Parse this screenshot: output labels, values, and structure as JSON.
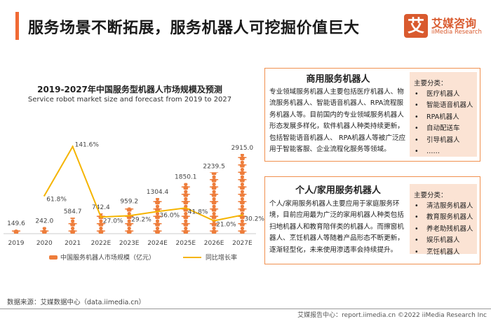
{
  "header": {
    "title": "服务场景不断拓展，服务机器人可挖掘价值巨大"
  },
  "logo": {
    "mark": "艾",
    "cn": "艾媒咨询",
    "en": "iiMedia Research"
  },
  "chart_data": {
    "type": "bar",
    "title": "2019-2027年中国服务型机器人市场规模及预测",
    "subtitle": "Service robot market size and forecast from 2019 to 2027",
    "categories": [
      "2019",
      "2020",
      "2021",
      "2022E",
      "2023E",
      "2024E",
      "2025E",
      "2026E",
      "2027E"
    ],
    "series": [
      {
        "name": "中国服务机器人市场规模（亿元）",
        "type": "bar",
        "values": [
          149.6,
          242.0,
          584.7,
          742.4,
          959.2,
          1304.4,
          1850.1,
          2239.5,
          2915.0
        ],
        "labels": [
          "149.6",
          "242.0",
          "584.7",
          "742.4",
          "959.2",
          "1304.4",
          "1850.1",
          "2239.5",
          "2915.0"
        ]
      },
      {
        "name": "同比增长率",
        "type": "line",
        "unit": "%",
        "values": [
          null,
          61.8,
          141.6,
          27.0,
          29.2,
          36.0,
          41.8,
          21.0,
          30.2
        ],
        "labels": [
          "",
          "61.8%",
          "141.6%",
          "27.0%",
          "29.2%",
          "36.0%",
          "41.8%",
          "21.0%",
          "30.2%"
        ]
      }
    ],
    "legend": "bottom",
    "grid": false,
    "colors": {
      "bar": "#ee7d3b",
      "line": "#f5b400"
    }
  },
  "commercial": {
    "title": "商用服务机器人",
    "body": "专业领域服务机器人主要包括医疗机器人、物流服务机器人、智能语音机器人、RPA流程服务机器人等。目前国内的专业领域服务机器人形态发展多样化，软件机器人种类持续更新，包括智能语音机器人、 RPA机器人等被广泛应用于智能客服、企业流程化服务等领域。",
    "panel_title": "主要分类：",
    "items": [
      "医疗机器人",
      "智能语音机器人",
      "RPA机器人",
      "自动配送车",
      "引导机器人",
      "……"
    ]
  },
  "personal": {
    "title": "个人/家用服务机器人",
    "body": "个人/家用服务机器人主要应用于家庭服务环境，目前应用最为广泛的家用机器人种类包括扫地机器人和教育陪伴类的机器人。而擦窗机器人、烹饪机器人等随着产品形态不断更新，逐渐轻型化，未来使用渗透率会持续提升。",
    "panel_title": "主要分类：",
    "items": [
      "清洁服务机器人",
      "教育服务机器人",
      "养老助残机器人",
      "娱乐机器人",
      "烹饪机器人"
    ]
  },
  "source": "数据来源：艾媒数据中心（data.iimedia.cn）",
  "footer": "艾媒报告中心：report.iimedia.cn   ©2022  iiMedia Research  Inc"
}
